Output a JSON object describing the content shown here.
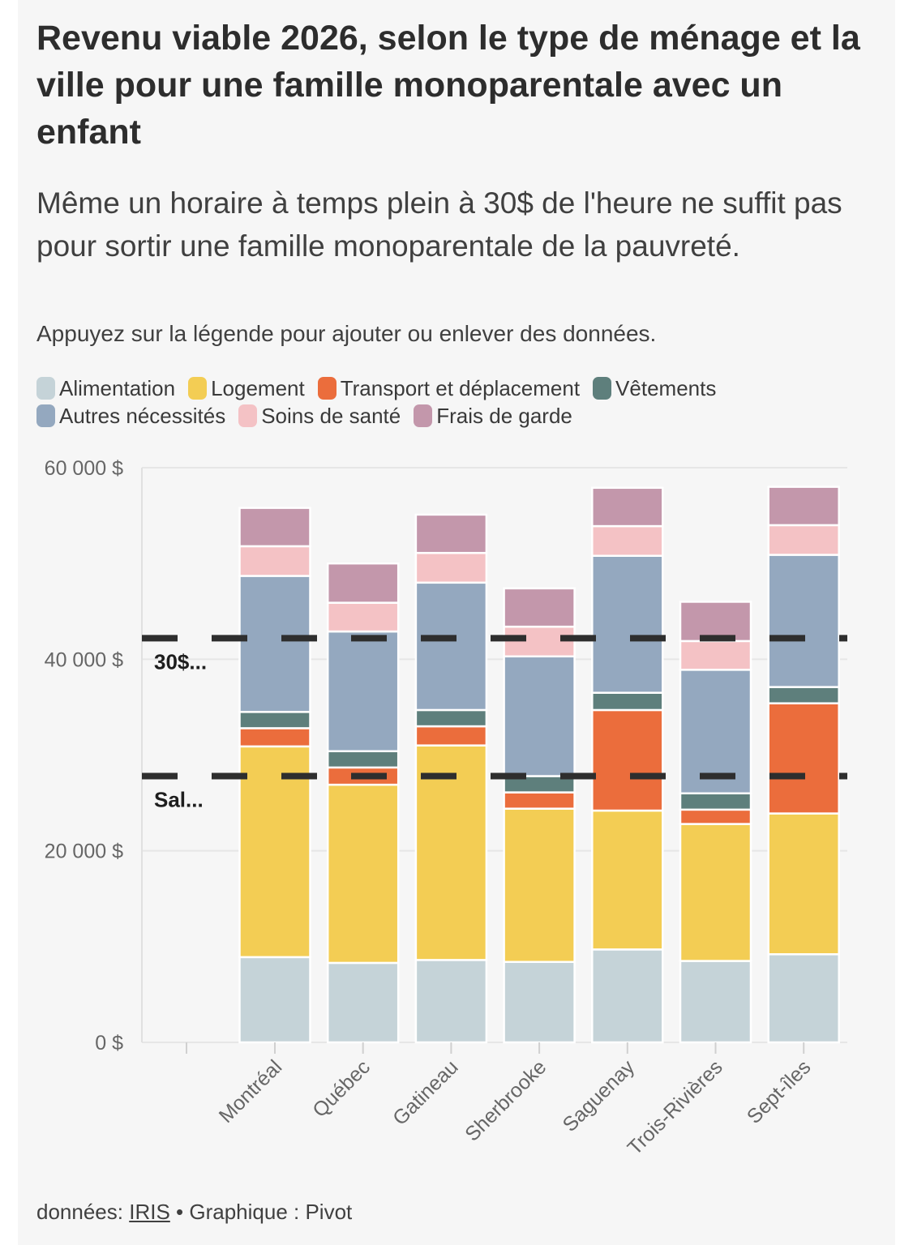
{
  "title": "Revenu viable 2026, selon le type de ménage et la ville pour une famille monoparentale avec un enfant",
  "subtitle": "Même un horaire à temps plein à 30$ de l'heure ne suffit pas pour sortir une famille monoparentale de la pauvreté.",
  "instruction": "Appuyez sur la légende pour ajouter ou enlever des données.",
  "footer": {
    "prefix": "données: ",
    "source_link": "IRIS",
    "separator": " • ",
    "credit": "Graphique : Pivot"
  },
  "chart_data": {
    "type": "bar",
    "stacked": true,
    "categories": [
      "Montréal",
      "Québec",
      "Gatineau",
      "Sherbrooke",
      "Saguenay",
      "Trois-Rivières",
      "Sept-îles"
    ],
    "series": [
      {
        "name": "Alimentation",
        "color": "#c5d3d8",
        "values": [
          8900,
          8300,
          8600,
          8400,
          9700,
          8500,
          9200
        ]
      },
      {
        "name": "Logement",
        "color": "#f3cd54",
        "values": [
          22000,
          18600,
          22400,
          16000,
          14500,
          14300,
          14700
        ]
      },
      {
        "name": "Transport et déplacement",
        "color": "#eb6d3c",
        "values": [
          1900,
          1800,
          2000,
          1700,
          10500,
          1500,
          11500
        ]
      },
      {
        "name": "Vêtements",
        "color": "#5e7f7c",
        "values": [
          1700,
          1700,
          1700,
          1700,
          1800,
          1700,
          1700
        ]
      },
      {
        "name": "Autres nécessités",
        "color": "#94a8bf",
        "values": [
          14200,
          12500,
          13300,
          12500,
          14300,
          12900,
          13800
        ]
      },
      {
        "name": "Soins de santé",
        "color": "#f4c2c5",
        "values": [
          3100,
          3000,
          3100,
          3100,
          3100,
          3000,
          3100
        ]
      },
      {
        "name": "Frais de garde",
        "color": "#c397ab",
        "values": [
          4000,
          4100,
          4000,
          4000,
          4000,
          4100,
          4000
        ]
      }
    ],
    "yticks": [
      {
        "value": 0,
        "label": "0 $"
      },
      {
        "value": 20000,
        "label": "20 000 $"
      },
      {
        "value": 40000,
        "label": "40 000 $"
      },
      {
        "value": 60000,
        "label": "60 000 $"
      }
    ],
    "ylim": [
      0,
      60000
    ],
    "reference_lines": [
      {
        "label": "30$...",
        "value": 42200
      },
      {
        "label": "Sal...",
        "value": 27800
      }
    ],
    "xlabel": "",
    "ylabel": "",
    "grid": true,
    "legend_position": "top"
  }
}
